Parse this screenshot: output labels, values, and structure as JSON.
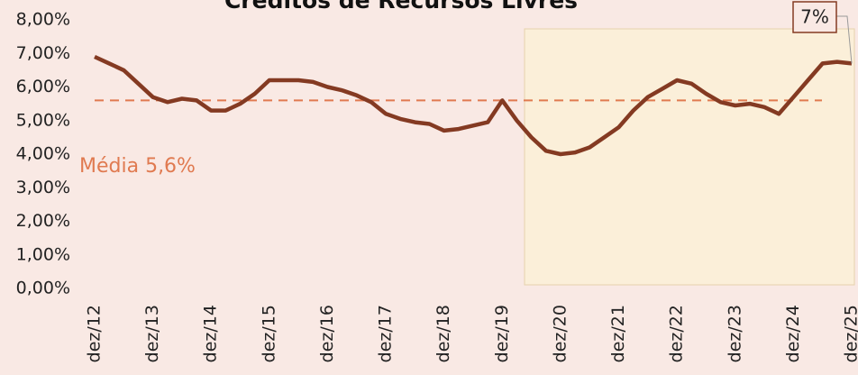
{
  "chart_data": {
    "type": "line",
    "title": "Créditos de Recursos Livres",
    "categories": [
      "dez/12",
      null,
      null,
      null,
      "dez/13",
      null,
      null,
      null,
      "dez/14",
      null,
      null,
      null,
      "dez/15",
      null,
      null,
      null,
      "dez/16",
      null,
      null,
      null,
      "dez/17",
      null,
      null,
      null,
      "dez/18",
      null,
      null,
      null,
      "dez/19",
      null,
      null,
      null,
      "dez/20",
      null,
      null,
      null,
      "dez/21",
      null,
      null,
      null,
      "dez/22",
      null,
      null,
      null,
      "dez/23",
      null,
      null,
      null,
      "dez/24",
      null,
      null,
      null,
      "dez/25"
    ],
    "values": [
      6.9,
      6.7,
      6.5,
      6.1,
      5.7,
      5.55,
      5.65,
      5.6,
      5.3,
      5.3,
      5.5,
      5.8,
      6.2,
      6.2,
      6.2,
      6.15,
      6.0,
      5.9,
      5.75,
      5.55,
      5.2,
      5.05,
      4.95,
      4.9,
      4.7,
      4.75,
      4.85,
      4.95,
      5.6,
      5.0,
      4.5,
      4.1,
      4.0,
      4.05,
      4.2,
      4.5,
      4.8,
      5.3,
      5.7,
      5.95,
      6.2,
      6.1,
      5.8,
      5.55,
      5.45,
      5.5,
      5.4,
      5.2,
      5.7,
      6.2,
      6.7,
      6.75,
      6.7
    ],
    "color": "#843a22",
    "ylim": [
      0,
      8
    ],
    "yticks": [
      {
        "value": 0,
        "label": "0,00%"
      },
      {
        "value": 1,
        "label": "1,00%"
      },
      {
        "value": 2,
        "label": "2,00%"
      },
      {
        "value": 3,
        "label": "3,00%"
      },
      {
        "value": 4,
        "label": "4,00%"
      },
      {
        "value": 5,
        "label": "5,00%"
      },
      {
        "value": 6,
        "label": "6,00%"
      },
      {
        "value": 7,
        "label": "7,00%"
      },
      {
        "value": 8,
        "label": "8,00%"
      }
    ],
    "mean": 5.6,
    "mean_label": "Média 5,6%",
    "mean_color": "#e07a50",
    "last_label": "7%"
  }
}
